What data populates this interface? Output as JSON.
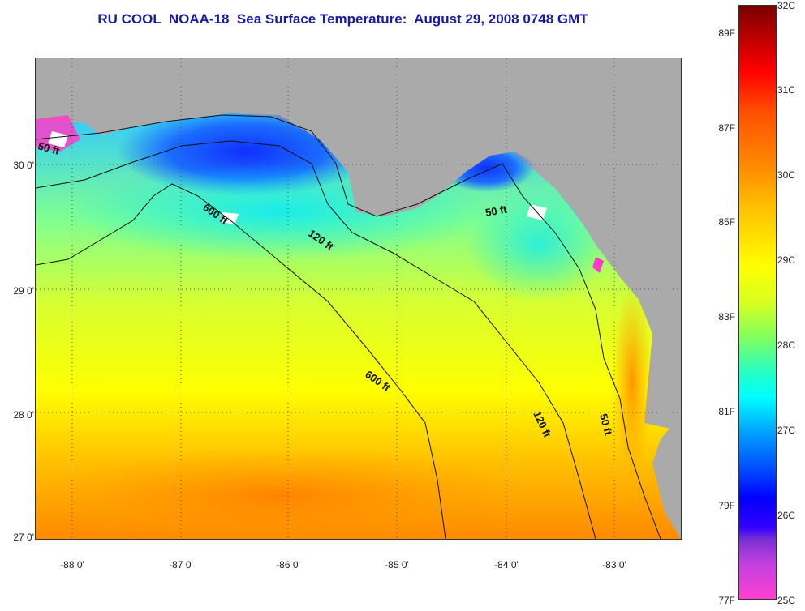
{
  "title": "RU COOL  NOAA-18  Sea Surface Temperature:  August 29, 2008 0748 GMT",
  "lat_labels": [
    "30 0'",
    "29 0'",
    "28 0'",
    "27 0'"
  ],
  "lon_labels": [
    "-88 0'",
    "-87 0'",
    "-86 0'",
    "-85 0'",
    "-84 0'",
    "-83 0'"
  ],
  "contours": {
    "label_50_west": "50 ft",
    "label_600_north": "600 ft",
    "label_120_north": "120 ft",
    "label_50_east": "50 ft",
    "label_600_south": "600 ft",
    "label_120_south": "120 ft",
    "label_50_south": "50 ft"
  },
  "colorbar": {
    "fahrenheit": [
      "89F",
      "87F",
      "85F",
      "83F",
      "81F",
      "79F",
      "77F"
    ],
    "celsius": [
      "32C",
      "31C",
      "30C",
      "29C",
      "28C",
      "27C",
      "26C",
      "25C"
    ]
  },
  "colors": {
    "land": "#aaaaaa",
    "title": "#1a1aa8",
    "warm": "#ff9a00",
    "mid": "#ffff00",
    "cool": "#00e0ff",
    "cold": "#1030ff"
  }
}
